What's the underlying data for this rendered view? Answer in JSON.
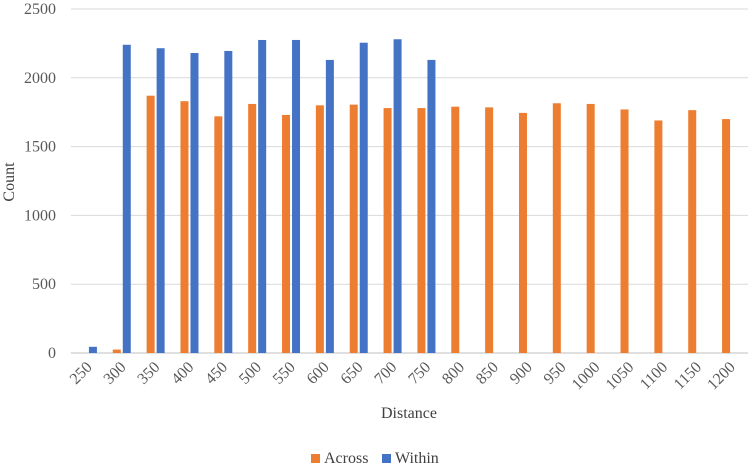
{
  "chart_data": {
    "type": "bar",
    "xlabel": "Distance",
    "ylabel": "Count",
    "ylim": [
      0,
      2500
    ],
    "yticks": [
      "0",
      "500",
      "1000",
      "1500",
      "2000",
      "2500"
    ],
    "grid": "horizontal",
    "legend_position": "bottom",
    "categories": [
      "250",
      "300",
      "350",
      "400",
      "450",
      "500",
      "550",
      "600",
      "650",
      "700",
      "750",
      "800",
      "850",
      "900",
      "950",
      "1000",
      "1050",
      "1100",
      "1150",
      "1200"
    ],
    "series": [
      {
        "name": "Across",
        "color": "#ED7D31",
        "values": [
          null,
          25,
          1870,
          1830,
          1720,
          1810,
          1730,
          1800,
          1805,
          1780,
          1780,
          1790,
          1785,
          1745,
          1815,
          1810,
          1770,
          1690,
          1765,
          1700
        ]
      },
      {
        "name": "Within",
        "color": "#4472C4",
        "values": [
          45,
          2240,
          2215,
          2180,
          2195,
          2275,
          2275,
          2130,
          2255,
          2280,
          2130,
          null,
          null,
          null,
          null,
          null,
          null,
          null,
          null,
          null
        ]
      }
    ]
  }
}
